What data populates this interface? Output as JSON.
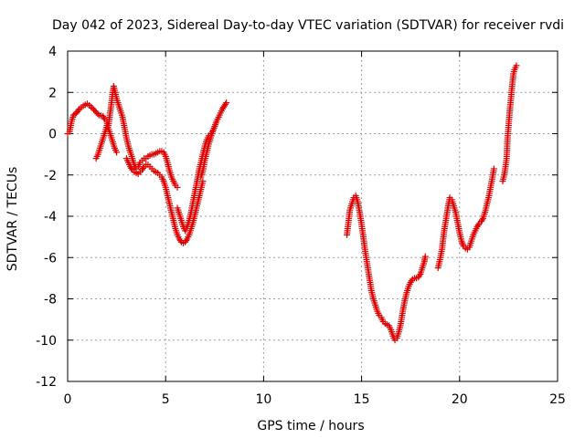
{
  "chart_data": {
    "type": "scatter",
    "title": "Day 042 of 2023, Sidereal Day-to-day VTEC variation (SDTVAR) for receiver rvdi",
    "xlabel": "GPS time / hours",
    "ylabel": "SDTVAR / TECUs",
    "xlim": [
      0,
      25
    ],
    "ylim": [
      -12,
      4
    ],
    "xticks": [
      0,
      5,
      10,
      15,
      20,
      25
    ],
    "yticks": [
      -12,
      -10,
      -8,
      -6,
      -4,
      -2,
      0,
      2,
      4
    ],
    "grid": true,
    "marker": "plus",
    "color": "#e00000",
    "series": [
      {
        "segments": [
          [
            [
              0.0,
              0.0
            ],
            [
              0.1,
              0.1
            ],
            [
              0.2,
              0.6
            ],
            [
              0.3,
              0.9
            ],
            [
              0.45,
              1.0
            ],
            [
              0.6,
              1.2
            ],
            [
              0.8,
              1.35
            ],
            [
              1.0,
              1.45
            ],
            [
              1.2,
              1.3
            ],
            [
              1.4,
              1.1
            ],
            [
              1.6,
              0.9
            ],
            [
              1.8,
              0.85
            ],
            [
              1.9,
              0.7
            ],
            [
              2.0,
              0.6
            ],
            [
              2.05,
              0.3
            ],
            [
              2.1,
              0.5
            ],
            [
              2.15,
              0.9
            ],
            [
              2.2,
              1.2
            ],
            [
              2.25,
              1.6
            ],
            [
              2.3,
              2.0
            ],
            [
              2.35,
              2.3
            ],
            [
              2.4,
              2.1
            ],
            [
              2.5,
              1.7
            ],
            [
              2.6,
              1.4
            ],
            [
              2.7,
              1.1
            ],
            [
              2.8,
              0.8
            ],
            [
              2.9,
              0.3
            ],
            [
              3.0,
              -0.2
            ],
            [
              3.1,
              -0.6
            ],
            [
              3.2,
              -0.9
            ],
            [
              3.3,
              -1.2
            ],
            [
              3.4,
              -1.5
            ],
            [
              3.5,
              -1.7
            ],
            [
              3.6,
              -1.6
            ],
            [
              3.7,
              -1.4
            ],
            [
              3.8,
              -1.3
            ],
            [
              3.9,
              -1.2
            ],
            [
              4.0,
              -1.2
            ],
            [
              4.1,
              -1.1
            ],
            [
              4.2,
              -1.05
            ],
            [
              4.3,
              -1.0
            ],
            [
              4.4,
              -1.0
            ],
            [
              4.5,
              -0.95
            ],
            [
              4.6,
              -0.9
            ],
            [
              4.7,
              -0.85
            ],
            [
              4.8,
              -0.85
            ],
            [
              4.9,
              -0.9
            ],
            [
              5.0,
              -1.1
            ],
            [
              5.1,
              -1.4
            ],
            [
              5.2,
              -1.8
            ],
            [
              5.3,
              -2.1
            ],
            [
              5.4,
              -2.3
            ],
            [
              5.5,
              -2.5
            ],
            [
              5.6,
              -2.6
            ]
          ],
          [
            [
              1.45,
              -1.2
            ],
            [
              1.55,
              -1.0
            ],
            [
              1.65,
              -0.7
            ],
            [
              1.75,
              -0.4
            ],
            [
              1.85,
              -0.1
            ],
            [
              1.95,
              0.2
            ],
            [
              2.0,
              0.4
            ],
            [
              2.1,
              0.2
            ],
            [
              2.2,
              -0.1
            ],
            [
              2.3,
              -0.4
            ],
            [
              2.4,
              -0.7
            ],
            [
              2.5,
              -0.9
            ]
          ],
          [
            [
              3.0,
              -1.2
            ],
            [
              3.1,
              -1.4
            ],
            [
              3.2,
              -1.6
            ],
            [
              3.3,
              -1.75
            ],
            [
              3.4,
              -1.85
            ],
            [
              3.5,
              -1.9
            ],
            [
              3.6,
              -1.95
            ],
            [
              3.7,
              -1.85
            ],
            [
              3.8,
              -1.75
            ],
            [
              3.9,
              -1.6
            ],
            [
              4.0,
              -1.5
            ],
            [
              4.1,
              -1.5
            ],
            [
              4.2,
              -1.6
            ],
            [
              4.3,
              -1.7
            ],
            [
              4.4,
              -1.8
            ],
            [
              4.5,
              -1.85
            ],
            [
              4.6,
              -1.9
            ],
            [
              4.7,
              -2.0
            ],
            [
              4.8,
              -2.1
            ],
            [
              4.9,
              -2.3
            ],
            [
              5.0,
              -2.6
            ],
            [
              5.1,
              -3.0
            ],
            [
              5.2,
              -3.4
            ],
            [
              5.3,
              -3.8
            ],
            [
              5.4,
              -4.2
            ],
            [
              5.5,
              -4.6
            ],
            [
              5.6,
              -4.9
            ],
            [
              5.7,
              -5.1
            ],
            [
              5.8,
              -5.25
            ],
            [
              5.9,
              -5.3
            ],
            [
              6.0,
              -5.25
            ],
            [
              6.1,
              -5.1
            ],
            [
              6.2,
              -4.9
            ],
            [
              6.3,
              -4.6
            ],
            [
              6.4,
              -4.3
            ],
            [
              6.5,
              -3.9
            ],
            [
              6.6,
              -3.5
            ],
            [
              6.7,
              -3.1
            ],
            [
              6.8,
              -2.7
            ],
            [
              6.9,
              -2.3
            ]
          ],
          [
            [
              5.6,
              -3.6
            ],
            [
              5.7,
              -3.9
            ],
            [
              5.8,
              -4.2
            ],
            [
              5.9,
              -4.5
            ],
            [
              6.0,
              -4.7
            ],
            [
              6.1,
              -4.5
            ],
            [
              6.2,
              -4.2
            ],
            [
              6.3,
              -3.8
            ],
            [
              6.4,
              -3.3
            ],
            [
              6.5,
              -2.8
            ],
            [
              6.6,
              -2.3
            ],
            [
              6.7,
              -1.8
            ],
            [
              6.8,
              -1.4
            ],
            [
              6.9,
              -1.0
            ],
            [
              7.0,
              -0.6
            ],
            [
              7.1,
              -0.3
            ],
            [
              7.2,
              -0.1
            ],
            [
              7.3,
              0.0
            ],
            [
              7.4,
              0.1
            ]
          ],
          [
            [
              6.8,
              -2.1
            ],
            [
              6.9,
              -1.8
            ],
            [
              7.0,
              -1.3
            ],
            [
              7.1,
              -0.9
            ],
            [
              7.2,
              -0.5
            ],
            [
              7.3,
              -0.2
            ],
            [
              7.4,
              0.1
            ],
            [
              7.5,
              0.35
            ],
            [
              7.6,
              0.6
            ],
            [
              7.7,
              0.8
            ],
            [
              7.8,
              1.0
            ],
            [
              7.9,
              1.2
            ],
            [
              8.0,
              1.35
            ],
            [
              8.1,
              1.5
            ]
          ],
          [
            [
              14.25,
              -4.9
            ],
            [
              14.3,
              -4.5
            ],
            [
              14.35,
              -4.1
            ],
            [
              14.4,
              -3.7
            ],
            [
              14.5,
              -3.4
            ],
            [
              14.6,
              -3.1
            ],
            [
              14.7,
              -3.0
            ],
            [
              14.8,
              -3.3
            ],
            [
              14.9,
              -3.8
            ],
            [
              15.0,
              -4.4
            ],
            [
              15.1,
              -5.1
            ],
            [
              15.2,
              -5.8
            ],
            [
              15.3,
              -6.4
            ],
            [
              15.4,
              -7.0
            ],
            [
              15.5,
              -7.6
            ],
            [
              15.6,
              -8.0
            ],
            [
              15.7,
              -8.3
            ],
            [
              15.8,
              -8.6
            ],
            [
              15.9,
              -8.8
            ],
            [
              16.0,
              -8.9
            ],
            [
              16.1,
              -9.1
            ],
            [
              16.2,
              -9.2
            ],
            [
              16.3,
              -9.25
            ],
            [
              16.4,
              -9.3
            ],
            [
              16.5,
              -9.5
            ],
            [
              16.6,
              -9.8
            ],
            [
              16.7,
              -10.0
            ],
            [
              16.8,
              -9.9
            ],
            [
              16.9,
              -9.6
            ],
            [
              17.0,
              -9.2
            ],
            [
              17.1,
              -8.6
            ],
            [
              17.2,
              -8.1
            ],
            [
              17.3,
              -7.7
            ],
            [
              17.4,
              -7.4
            ],
            [
              17.5,
              -7.2
            ],
            [
              17.6,
              -7.05
            ],
            [
              17.7,
              -7.0
            ],
            [
              17.8,
              -7.0
            ],
            [
              17.9,
              -6.95
            ],
            [
              18.0,
              -6.8
            ],
            [
              18.1,
              -6.5
            ],
            [
              18.2,
              -6.2
            ],
            [
              18.25,
              -5.95
            ]
          ],
          [
            [
              18.9,
              -6.5
            ],
            [
              19.0,
              -6.1
            ],
            [
              19.1,
              -5.6
            ],
            [
              19.2,
              -4.8
            ],
            [
              19.3,
              -4.2
            ],
            [
              19.4,
              -3.6
            ],
            [
              19.5,
              -3.1
            ],
            [
              19.6,
              -3.2
            ],
            [
              19.7,
              -3.5
            ],
            [
              19.8,
              -3.8
            ],
            [
              19.9,
              -4.3
            ],
            [
              20.0,
              -4.8
            ],
            [
              20.1,
              -5.2
            ],
            [
              20.2,
              -5.45
            ],
            [
              20.3,
              -5.55
            ],
            [
              20.4,
              -5.6
            ],
            [
              20.5,
              -5.5
            ],
            [
              20.6,
              -5.2
            ],
            [
              20.7,
              -4.9
            ],
            [
              20.8,
              -4.7
            ],
            [
              20.9,
              -4.5
            ],
            [
              21.0,
              -4.35
            ],
            [
              21.1,
              -4.25
            ],
            [
              21.2,
              -4.1
            ],
            [
              21.3,
              -3.8
            ],
            [
              21.4,
              -3.4
            ],
            [
              21.5,
              -3.0
            ],
            [
              21.6,
              -2.5
            ],
            [
              21.7,
              -2.0
            ],
            [
              21.75,
              -1.7
            ]
          ],
          [
            [
              22.2,
              -2.3
            ],
            [
              22.3,
              -1.9
            ],
            [
              22.4,
              -1.2
            ],
            [
              22.45,
              -0.2
            ],
            [
              22.5,
              0.4
            ],
            [
              22.55,
              1.0
            ],
            [
              22.6,
              1.5
            ],
            [
              22.65,
              2.0
            ],
            [
              22.7,
              2.5
            ],
            [
              22.75,
              2.9
            ],
            [
              22.8,
              3.1
            ],
            [
              22.9,
              3.3
            ]
          ]
        ]
      }
    ]
  }
}
